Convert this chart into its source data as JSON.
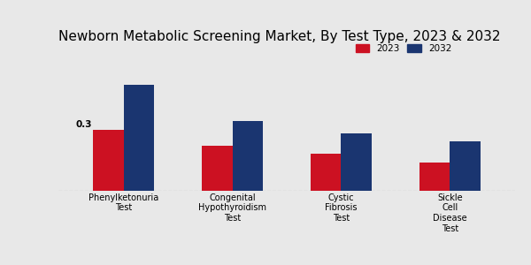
{
  "title": "Newborn Metabolic Screening Market, By Test Type, 2023 & 2032",
  "categories": [
    "Phenylketonuria\nTest",
    "Congenital\nHypothyroidism\nTest",
    "Cystic\nFibrosis\nTest",
    "Sickle\nCell\nDisease\nTest"
  ],
  "values_2023": [
    0.3,
    0.22,
    0.18,
    0.14
  ],
  "values_2032": [
    0.52,
    0.34,
    0.28,
    0.24
  ],
  "color_2023": "#cc1122",
  "color_2032": "#1a3570",
  "bar_width": 0.28,
  "annotation_text": "0.3",
  "background_color": "#e8e8e8",
  "legend_labels": [
    "2023",
    "2032"
  ],
  "title_fontsize": 11,
  "label_fontsize": 7.5,
  "tick_fontsize": 7,
  "ylim": [
    0,
    0.7
  ]
}
